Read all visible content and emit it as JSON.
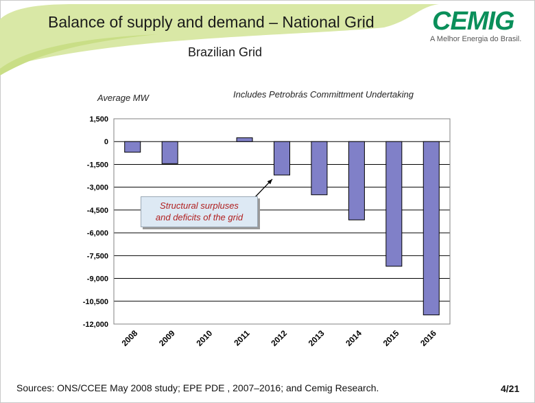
{
  "slide": {
    "title": "Balance of supply and demand – National Grid",
    "subtitle": "Brazilian Grid",
    "footer": "Sources: ONS/CCEE May 2008 study; EPE PDE , 2007–2016; and Cemig Research.",
    "page_number": "4/21"
  },
  "logo": {
    "wordmark": "CEMIG",
    "tagline": "A Melhor Energia do Brasil.",
    "color": "#0a8f5a"
  },
  "colors": {
    "bar_fill": "#8080c8",
    "swoosh": "#d9e8a6",
    "callout_text": "#b01e1e"
  },
  "chart_data": {
    "type": "bar",
    "ylabel": "Average MW",
    "note": "Includes Petrobrás Committment Undertaking",
    "annotation": "Structural surpluses and deficits of the grid",
    "annotation_lines": [
      "Structural surpluses",
      "and deficits of the grid"
    ],
    "categories": [
      "2008",
      "2009",
      "2010",
      "2011",
      "2012",
      "2013",
      "2014",
      "2015",
      "2016"
    ],
    "values": [
      -700,
      -1450,
      0,
      250,
      -2200,
      -3500,
      -5150,
      -8200,
      -11400
    ],
    "ylim": [
      -12000,
      1500
    ],
    "yticks": [
      1500,
      0,
      -1500,
      -3000,
      -4500,
      -6000,
      -7500,
      -9000,
      -10500,
      -12000
    ],
    "ytick_labels": [
      "1,500",
      "0",
      "-1,500",
      "-3,000",
      "-4,500",
      "-6,000",
      "-7,500",
      "-9,000",
      "-10,500",
      "-12,000"
    ],
    "grid": true,
    "legend": "none"
  }
}
